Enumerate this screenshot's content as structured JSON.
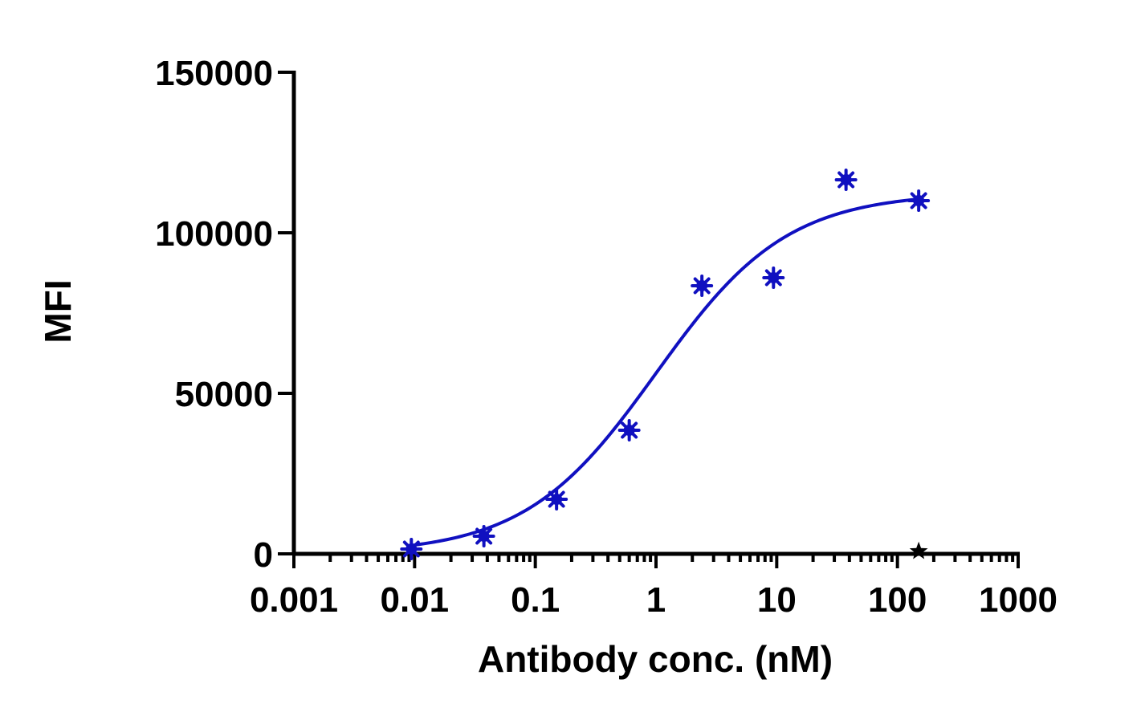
{
  "chart_data": {
    "type": "scatter",
    "xlabel": "Antibody conc. (nM)",
    "ylabel": "MFI",
    "xscale": "log",
    "xlim": [
      0.001,
      1000
    ],
    "ylim": [
      0,
      150000
    ],
    "grid": false,
    "x_ticks": [
      {
        "value": 0.001,
        "label": "0.001"
      },
      {
        "value": 0.01,
        "label": "0.01"
      },
      {
        "value": 0.1,
        "label": "0.1"
      },
      {
        "value": 1,
        "label": "1"
      },
      {
        "value": 10,
        "label": "10"
      },
      {
        "value": 100,
        "label": "100"
      },
      {
        "value": 1000,
        "label": "1000"
      }
    ],
    "y_ticks": [
      {
        "value": 0,
        "label": "0"
      },
      {
        "value": 50000,
        "label": "50000"
      },
      {
        "value": 100000,
        "label": "100000"
      },
      {
        "value": 150000,
        "label": "150000"
      }
    ],
    "series": [
      {
        "color": "#1010c0",
        "marker": "asterisk",
        "points": [
          {
            "x": 0.0094,
            "y": 1500
          },
          {
            "x": 0.0375,
            "y": 5500
          },
          {
            "x": 0.15,
            "y": 17000
          },
          {
            "x": 0.6,
            "y": 38500
          },
          {
            "x": 2.4,
            "y": 83500
          },
          {
            "x": 9.4,
            "y": 86000
          },
          {
            "x": 37.5,
            "y": 116500
          },
          {
            "x": 150,
            "y": 110000
          }
        ],
        "fit": {
          "model": "4PL",
          "bottom": 0,
          "top": 112500,
          "ec50": 1.0,
          "hill": 0.8
        }
      },
      {
        "color": "#000000",
        "marker": "star",
        "points": [
          {
            "x": 150,
            "y": 800
          }
        ]
      }
    ]
  }
}
